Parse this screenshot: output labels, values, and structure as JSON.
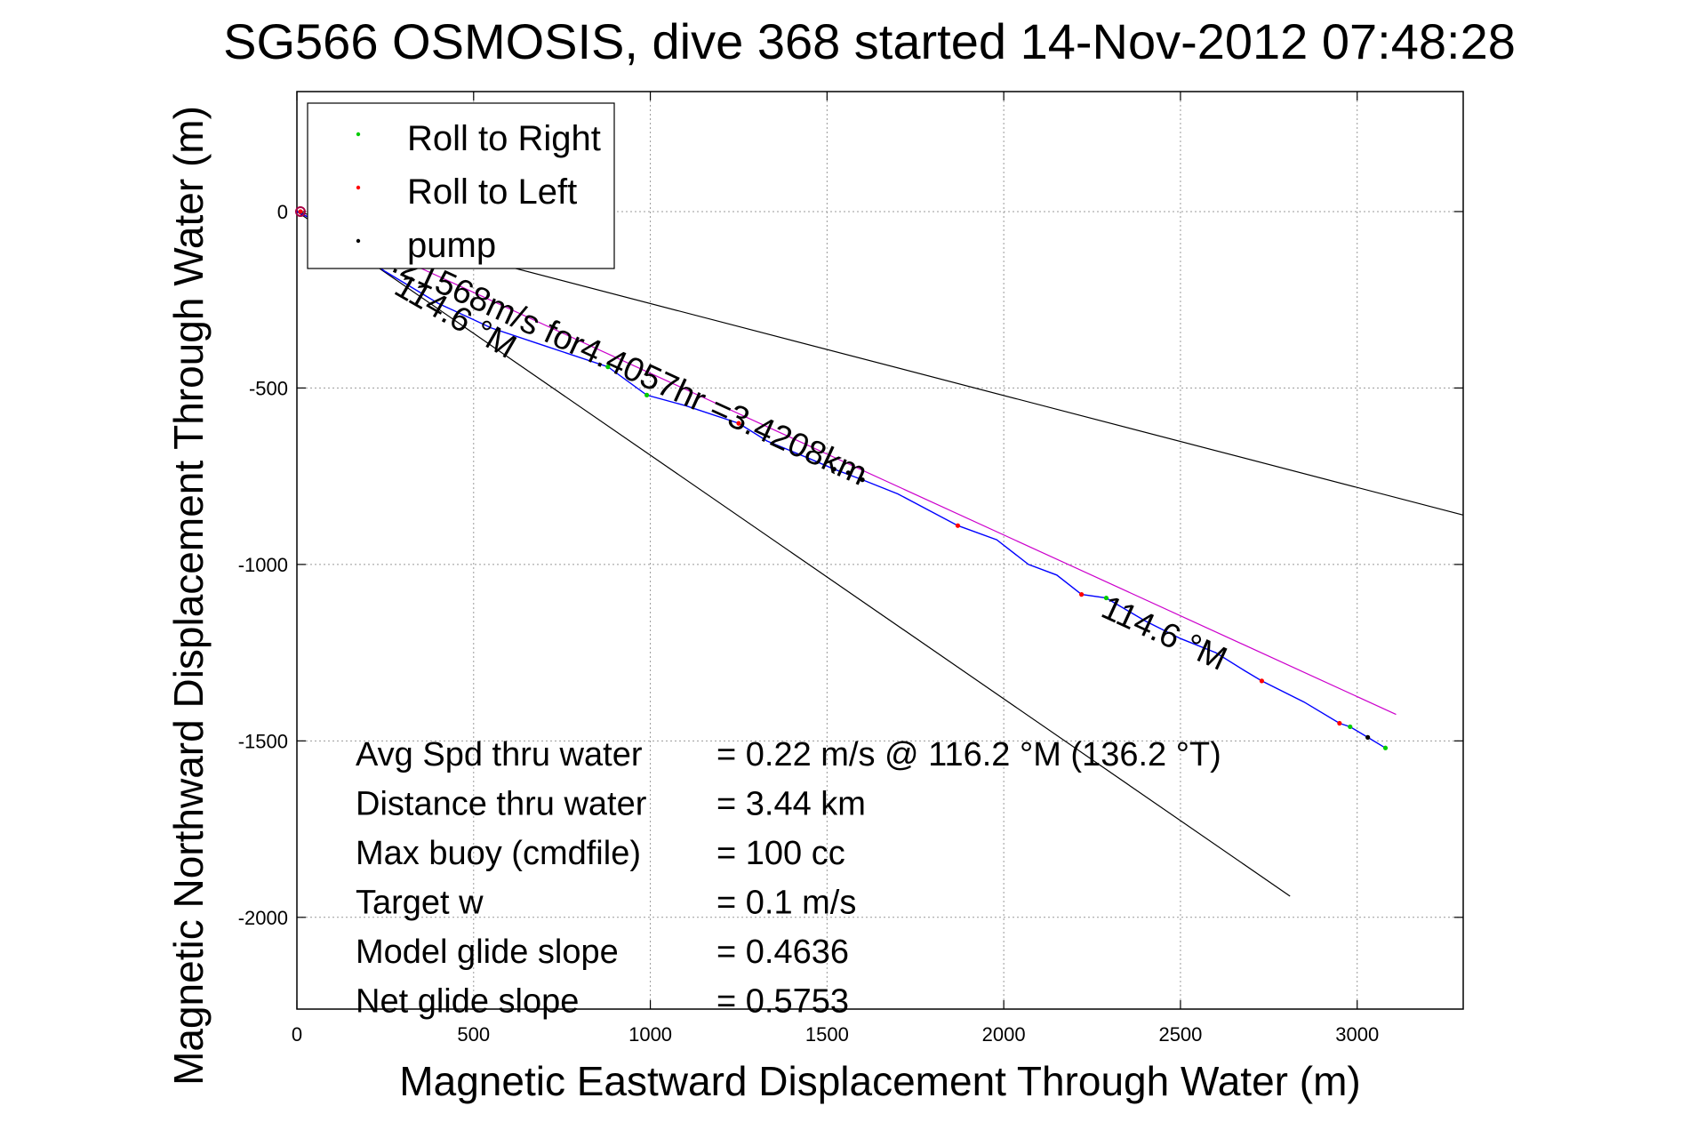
{
  "chart_data": {
    "type": "line",
    "title": "SG566 OSMOSIS, dive 368 started 14-Nov-2012 07:48:28",
    "xlabel": "Magnetic Eastward Displacement Through Water (m)",
    "ylabel": "Magnetic Northward Displacement Through Water (m)",
    "xlim": [
      0,
      3300
    ],
    "ylim": [
      -2260,
      340
    ],
    "x_ticks": [
      0,
      500,
      1000,
      1500,
      2000,
      2500,
      3000
    ],
    "y_ticks": [
      0,
      -500,
      -1000,
      -1500,
      -2000
    ],
    "grid": true,
    "legend_position": "top-left",
    "legend": [
      {
        "label": "Roll to Right",
        "color": "#00cc00"
      },
      {
        "label": "Roll to Left",
        "color": "#ff0000"
      },
      {
        "label": "pump",
        "color": "#000000"
      }
    ],
    "track": {
      "color": "#0000ff",
      "x": [
        0,
        40,
        120,
        250,
        400,
        550,
        700,
        880,
        990,
        1100,
        1250,
        1330,
        1450,
        1520,
        1600,
        1700,
        1870,
        1980,
        2070,
        2150,
        2220,
        2290,
        2400,
        2500,
        2600,
        2680,
        2730,
        2850,
        2950,
        2980,
        3030,
        3080
      ],
      "y": [
        0,
        -20,
        -80,
        -170,
        -260,
        -330,
        -380,
        -440,
        -520,
        -550,
        -600,
        -650,
        -700,
        -730,
        -760,
        -800,
        -890,
        -930,
        -1000,
        -1030,
        -1085,
        -1095,
        -1160,
        -1210,
        -1250,
        -1300,
        -1330,
        -1390,
        -1450,
        -1460,
        -1490,
        -1520
      ]
    },
    "roll_right_points": {
      "x": [
        880,
        990,
        2290,
        2980,
        3080
      ],
      "y": [
        -440,
        -520,
        -1095,
        -1460,
        -1520
      ]
    },
    "roll_left_points": {
      "x": [
        10,
        1250,
        1870,
        2220,
        2730,
        2950
      ],
      "y": [
        0,
        -600,
        -890,
        -1085,
        -1330,
        -1450
      ]
    },
    "pump_points": {
      "x": [
        1520,
        1560,
        1600,
        3030
      ],
      "y": [
        -730,
        -740,
        -760,
        -1490
      ]
    },
    "reference_lines": [
      {
        "x": [
          0,
          3110
        ],
        "y": [
          0,
          -1425
        ],
        "color": "#cc00cc"
      },
      {
        "x": [
          0,
          3300
        ],
        "y": [
          0,
          -860
        ],
        "color": "#000000"
      },
      {
        "x": [
          0,
          2810
        ],
        "y": [
          0,
          -1940
        ],
        "color": "#000000"
      }
    ],
    "annotations": [
      {
        "text": "0.21568m/s for4.4057hr =3.4208km",
        "x": 215,
        "y": -145,
        "rotation": 24.6
      },
      {
        "text": "114.6 °M",
        "x": 270,
        "y": -230,
        "rotation": 30
      },
      {
        "text": "114.6 °M",
        "x": 2270,
        "y": -1145,
        "rotation": 24.6
      }
    ],
    "stats": [
      {
        "label": "Avg Spd thru water",
        "value": "=  0.22 m/s @ 116.2 °M (136.2 °T)"
      },
      {
        "label": "Distance thru water",
        "value": "=  3.44 km"
      },
      {
        "label": "Max buoy (cmdfile)",
        "value": "= 100 cc"
      },
      {
        "label": "Target w",
        "value": "= 0.1 m/s"
      },
      {
        "label": "Model glide slope",
        "value": "= 0.4636"
      },
      {
        "label": "Net glide slope",
        "value": "= 0.5753"
      }
    ]
  }
}
